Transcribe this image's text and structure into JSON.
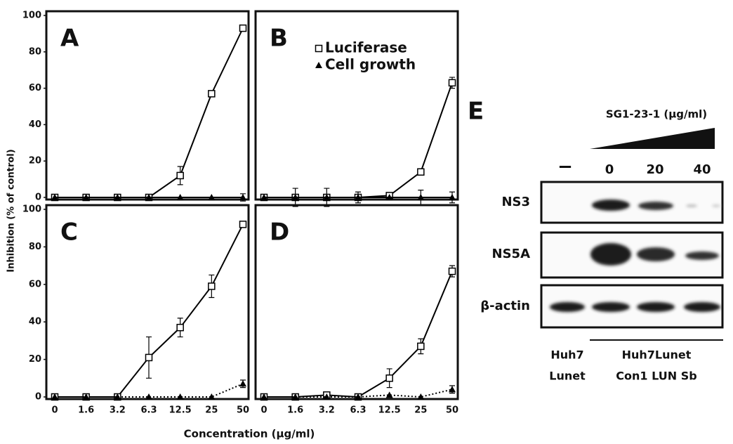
{
  "figure": {
    "ylabel": "Inhibition (% of control)",
    "xlabel": "Concentration (μg/ml)"
  },
  "chart_data": [
    {
      "type": "line",
      "title": "A",
      "categories": [
        null,
        null,
        null,
        null,
        null,
        null,
        null
      ],
      "ylim": [
        0,
        100
      ],
      "yticks": [
        0,
        20,
        40,
        60,
        80,
        100
      ],
      "series": [
        {
          "color": "#000000",
          "marker": "square-open",
          "linestyle": "solid",
          "values": [
            0,
            0,
            0,
            0,
            12,
            57,
            93
          ],
          "errors": [
            null,
            null,
            null,
            null,
            5,
            null,
            1
          ]
        },
        {
          "color": "#000000",
          "marker": "triangle",
          "linestyle": "solid",
          "values": [
            0,
            0,
            0,
            0,
            0,
            0,
            0
          ],
          "errors": [
            null,
            null,
            null,
            null,
            null,
            null,
            2
          ]
        }
      ]
    },
    {
      "type": "line",
      "title": "B",
      "categories": [
        null,
        null,
        null,
        null,
        null,
        null,
        null
      ],
      "ylim": [
        0,
        100
      ],
      "legend": true,
      "series": [
        {
          "name": "Luciferase",
          "color": "#000000",
          "marker": "square-open",
          "linestyle": "solid",
          "values": [
            0,
            0,
            0,
            0,
            1,
            14,
            63
          ],
          "errors": [
            null,
            5,
            5,
            3,
            null,
            1,
            3
          ]
        },
        {
          "name": "Cell growth",
          "color": "#000000",
          "marker": "triangle",
          "linestyle": "solid",
          "values": [
            0,
            0,
            0,
            0,
            0,
            0,
            0
          ],
          "errors": [
            null,
            null,
            null,
            null,
            null,
            4,
            3
          ]
        }
      ]
    },
    {
      "type": "line",
      "title": "C",
      "categories": [
        "0",
        "1.6",
        "3.2",
        "6.3",
        "12.5",
        "25",
        "50"
      ],
      "ylim": [
        0,
        100
      ],
      "yticks": [
        0,
        20,
        40,
        60,
        80,
        100
      ],
      "series": [
        {
          "color": "#000000",
          "marker": "square-open",
          "linestyle": "solid",
          "values": [
            0,
            0,
            0,
            21,
            37,
            59,
            92
          ],
          "errors": [
            null,
            null,
            null,
            11,
            5,
            6,
            1
          ]
        },
        {
          "color": "#000000",
          "marker": "triangle",
          "linestyle": "dotted",
          "values": [
            0,
            0,
            0,
            0,
            0,
            0,
            7
          ],
          "errors": [
            null,
            null,
            null,
            null,
            null,
            null,
            2
          ]
        }
      ]
    },
    {
      "type": "line",
      "title": "D",
      "categories": [
        "0",
        "1.6",
        "3.2",
        "6.3",
        "12.5",
        "25",
        "50"
      ],
      "ylim": [
        0,
        100
      ],
      "series": [
        {
          "color": "#000000",
          "marker": "square-open",
          "linestyle": "solid",
          "values": [
            0,
            0,
            1,
            0,
            10,
            27,
            67
          ],
          "errors": [
            null,
            null,
            null,
            null,
            5,
            4,
            3
          ]
        },
        {
          "color": "#000000",
          "marker": "triangle",
          "linestyle": "dotted",
          "values": [
            0,
            0,
            0,
            0,
            1,
            0,
            4
          ],
          "errors": [
            null,
            null,
            null,
            null,
            null,
            null,
            2
          ]
        }
      ]
    }
  ],
  "blot": {
    "title": "E",
    "treatment": "SG1-23-1 (μg/ml)",
    "lanes": [
      "−",
      "0",
      "20",
      "40"
    ],
    "rows": [
      "NS3",
      "NS5A",
      "β-actin"
    ],
    "groups": [
      [
        "Huh7",
        "Lunet"
      ],
      [
        "Huh7Lunet",
        "Con1 LUN Sb"
      ]
    ]
  }
}
